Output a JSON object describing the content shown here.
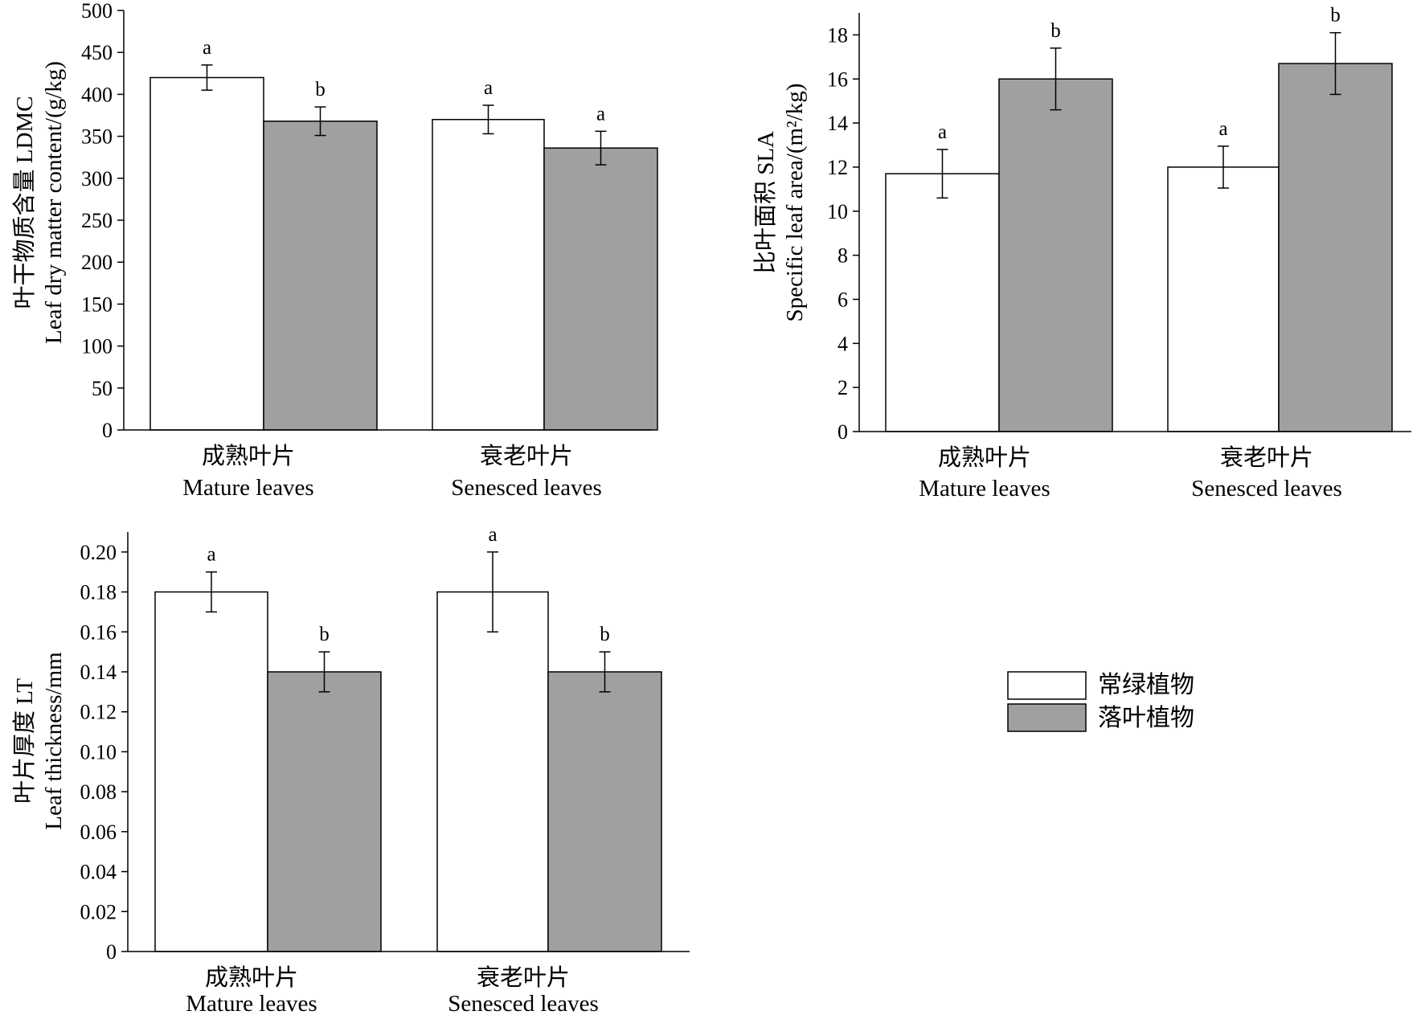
{
  "legend": {
    "items": [
      {
        "label": "常绿植物",
        "color": "#ffffff"
      },
      {
        "label": "落叶植物",
        "color": "#a0a0a0"
      }
    ],
    "position": "right-middle"
  },
  "chart_data": [
    {
      "type": "bar",
      "ylabel_cn": "叶干物质含量 LDMC",
      "ylabel_en": "Leaf dry matter content/(g/kg)",
      "ylim": [
        0,
        500
      ],
      "yticks": [
        "0",
        "50",
        "100",
        "150",
        "200",
        "250",
        "300",
        "350",
        "400",
        "450",
        "500"
      ],
      "categories": [
        {
          "cn": "成熟叶片",
          "en": "Mature leaves"
        },
        {
          "cn": "衰老叶片",
          "en": "Senesced leaves"
        }
      ],
      "series": [
        {
          "name": "常绿植物",
          "values": [
            420,
            370
          ],
          "errors": [
            15,
            17
          ],
          "letters": [
            "a",
            "a"
          ]
        },
        {
          "name": "落叶植物",
          "values": [
            368,
            336
          ],
          "errors": [
            17,
            20
          ],
          "letters": [
            "b",
            "a"
          ]
        }
      ]
    },
    {
      "type": "bar",
      "ylabel_cn": "比叶面积 SLA",
      "ylabel_en": "Specific leaf area/(m²/kg)",
      "ylim": [
        0,
        19
      ],
      "yticks": [
        "0",
        "2",
        "4",
        "6",
        "8",
        "10",
        "12",
        "14",
        "16",
        "18"
      ],
      "categories": [
        {
          "cn": "成熟叶片",
          "en": "Mature leaves"
        },
        {
          "cn": "衰老叶片",
          "en": "Senesced leaves"
        }
      ],
      "series": [
        {
          "name": "常绿植物",
          "values": [
            11.7,
            12.0
          ],
          "errors": [
            1.1,
            0.95
          ],
          "letters": [
            "a",
            "a"
          ]
        },
        {
          "name": "落叶植物",
          "values": [
            16.0,
            16.7
          ],
          "errors": [
            1.4,
            1.4
          ],
          "letters": [
            "b",
            "b"
          ]
        }
      ]
    },
    {
      "type": "bar",
      "ylabel_cn": "叶片厚度 LT",
      "ylabel_en": "Leaf thickness/mm",
      "ylim": [
        0,
        0.21
      ],
      "yticks": [
        "0",
        "0.02",
        "0.04",
        "0.06",
        "0.08",
        "0.10",
        "0.12",
        "0.14",
        "0.16",
        "0.18",
        "0.20"
      ],
      "categories": [
        {
          "cn": "成熟叶片",
          "en": "Mature leaves"
        },
        {
          "cn": "衰老叶片",
          "en": "Senesced leaves"
        }
      ],
      "series": [
        {
          "name": "常绿植物",
          "values": [
            0.18,
            0.18
          ],
          "errors": [
            0.01,
            0.02
          ],
          "letters": [
            "a",
            "a"
          ]
        },
        {
          "name": "落叶植物",
          "values": [
            0.14,
            0.14
          ],
          "errors": [
            0.01,
            0.01
          ],
          "letters": [
            "b",
            "b"
          ]
        }
      ]
    }
  ]
}
